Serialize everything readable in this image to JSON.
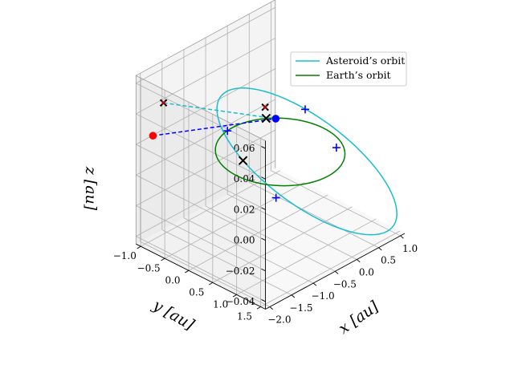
{
  "chart_data": {
    "type": "line",
    "title": "",
    "xlabel": "$x$ [au]",
    "ylabel": "$y$ [au]",
    "zlabel": "$z$ [au]",
    "xlabel_text": "x [au]",
    "ylabel_text": "y [au]",
    "zlabel_text": "z [au]",
    "xlim": [
      -2.1,
      1.1
    ],
    "ylim": [
      -1.1,
      1.6
    ],
    "zlim": [
      -0.045,
      0.065
    ],
    "xticks": [
      {
        "v": -2.0,
        "label": "−2.0"
      },
      {
        "v": -1.5,
        "label": "−1.5"
      },
      {
        "v": -1.0,
        "label": "−1.0"
      },
      {
        "v": -0.5,
        "label": "−0.5"
      },
      {
        "v": 0.0,
        "label": "0.0"
      },
      {
        "v": 0.5,
        "label": "0.5"
      },
      {
        "v": 1.0,
        "label": "1.0"
      }
    ],
    "yticks": [
      {
        "v": -1.0,
        "label": "−1.0"
      },
      {
        "v": -0.5,
        "label": "−0.5"
      },
      {
        "v": 0.0,
        "label": "0.0"
      },
      {
        "v": 0.5,
        "label": "0.5"
      },
      {
        "v": 1.0,
        "label": "1.0"
      },
      {
        "v": 1.5,
        "label": "1.5"
      }
    ],
    "zticks": [
      {
        "v": -0.04,
        "label": "−0.04"
      },
      {
        "v": -0.02,
        "label": "−0.02"
      },
      {
        "v": 0.0,
        "label": "0.00"
      },
      {
        "v": 0.02,
        "label": "0.02"
      },
      {
        "v": 0.04,
        "label": "0.04"
      },
      {
        "v": 0.06,
        "label": "0.06"
      }
    ],
    "grid": true,
    "legend_position": "top-right",
    "series": [
      {
        "name": "Asteroid’s orbit",
        "kind": "ellipse",
        "a": 1.4,
        "e": 0.32,
        "inc_deg": 1.4,
        "omega_deg": 205,
        "node_deg": 145,
        "color": "#17becf"
      },
      {
        "name": "Earth’s orbit",
        "kind": "circle",
        "a": 1.0,
        "color": "#008000"
      }
    ],
    "transfer_paths": [
      {
        "from": [
          -1.05,
          -1.7,
          0.0
        ],
        "to": [
          0.68,
          -0.71,
          0.0
        ],
        "color": "#0000ff"
      },
      {
        "from": [
          -0.85,
          -1.66,
          0.019
        ],
        "to": [
          0.68,
          -0.71,
          0.0
        ],
        "color": "#17becf"
      }
    ],
    "points": [
      {
        "role": "start",
        "xyz": [
          -1.05,
          -1.7,
          0.0
        ],
        "color": "#ff0000"
      },
      {
        "role": "end",
        "xyz": [
          0.68,
          -0.71,
          0.0
        ],
        "color": "#0000ff"
      }
    ],
    "x_markers": [
      {
        "xyz": [
          -0.85,
          -1.66,
          0.019
        ],
        "color": "#000000",
        "overlay": "#ff0000",
        "size": 8
      },
      {
        "xyz": [
          0.58,
          -0.84,
          0.007
        ],
        "color": "#000000",
        "overlay": "#ff0000",
        "size": 8
      },
      {
        "xyz": [
          -0.6,
          -0.23,
          0.0
        ],
        "color": "#000000",
        "size": 10
      },
      {
        "xyz": [
          0.58,
          -0.82,
          0.0
        ],
        "color": "#000000",
        "size": 10
      }
    ],
    "plus_markers": [
      {
        "xyz": [
          -0.12,
          -0.99,
          0.0
        ],
        "color": "#0000ff"
      },
      {
        "xyz": [
          0.74,
          -0.15,
          0.014
        ],
        "color": "#0000ff"
      },
      {
        "xyz": [
          -0.48,
          0.35,
          -0.017
        ],
        "color": "#0000ff"
      },
      {
        "xyz": [
          0.95,
          0.31,
          -0.007
        ],
        "color": "#0000ff"
      }
    ]
  }
}
